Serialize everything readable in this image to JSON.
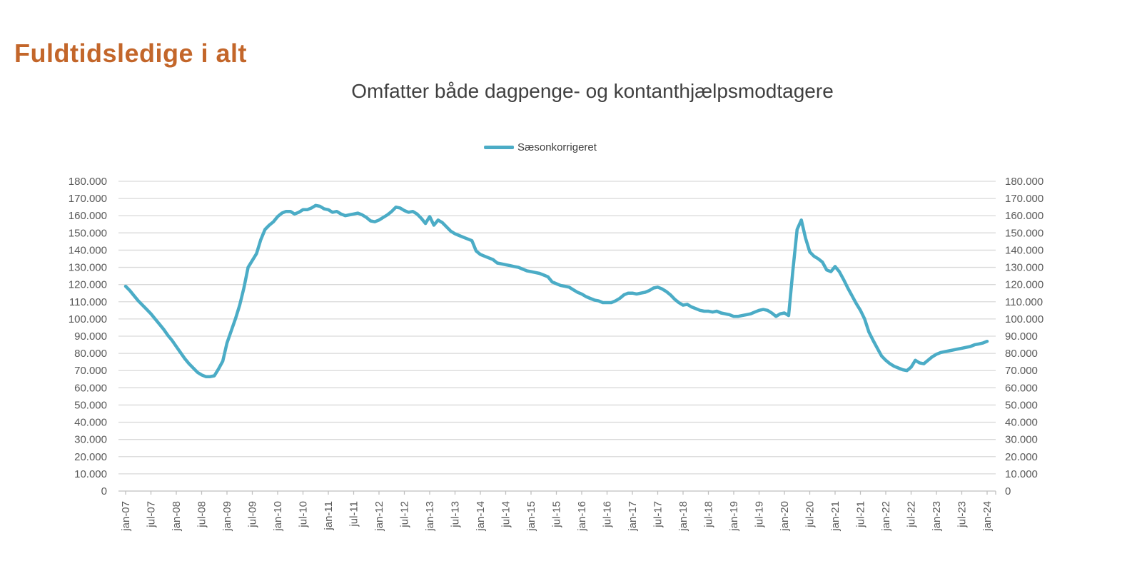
{
  "page_title": "Fuldtidsledige i alt",
  "chart": {
    "title": "Omfatter både dagpenge- og kontanthjælpsmodtagere",
    "legend_label": "Sæsonkorrigeret"
  },
  "colors": {
    "page_title": "#c3662a",
    "chart_title": "#404040",
    "legend_text": "#404040",
    "axis_text": "#595959",
    "line": "#4bacc6",
    "grid": "#d9d9d9",
    "axis_line": "#bfbfbf"
  },
  "chart_data": {
    "type": "line",
    "title": "Omfatter både dagpenge- og kontanthjælpsmodtagere",
    "legend": [
      "Sæsonkorrigeret"
    ],
    "legend_position": "top",
    "grid": "horizontal",
    "ylim": [
      0,
      180000
    ],
    "y_ticks": [
      0,
      10000,
      20000,
      30000,
      40000,
      50000,
      60000,
      70000,
      80000,
      90000,
      100000,
      110000,
      120000,
      130000,
      140000,
      150000,
      160000,
      170000,
      180000
    ],
    "y_tick_format": "da-DK thousands with dot separator",
    "x_start": "jan-07",
    "x_end": "jan-24",
    "x_interval": "monthly",
    "x_tick_labels": [
      "jan-07",
      "jul-07",
      "jan-08",
      "jul-08",
      "jan-09",
      "jul-09",
      "jan-10",
      "jul-10",
      "jan-11",
      "jul-11",
      "jan-12",
      "jul-12",
      "jan-13",
      "jul-13",
      "jan-14",
      "jul-14",
      "jan-15",
      "jul-15",
      "jan-16",
      "jul-16",
      "jan-17",
      "jul-17",
      "jan-18",
      "jul-18",
      "jan-19",
      "jul-19",
      "jan-20",
      "jul-20",
      "jan-21",
      "jul-21",
      "jan-22",
      "jul-22",
      "jan-23",
      "jul-23",
      "jan-24"
    ],
    "series": [
      {
        "name": "Sæsonkorrigeret",
        "values": [
          119000,
          116500,
          113500,
          110500,
          108000,
          105500,
          103000,
          100000,
          97000,
          94000,
          90500,
          87500,
          84000,
          80500,
          77000,
          74000,
          71500,
          69000,
          67500,
          66500,
          66500,
          67000,
          71000,
          75500,
          86000,
          93000,
          100000,
          108000,
          118000,
          130000,
          134000,
          138000,
          146000,
          152000,
          154500,
          156500,
          159500,
          161500,
          162500,
          162500,
          161000,
          162000,
          163500,
          163500,
          164500,
          166000,
          165500,
          164000,
          163500,
          162000,
          162500,
          161000,
          160000,
          160500,
          161000,
          161500,
          160500,
          159000,
          157000,
          156500,
          157500,
          159000,
          160500,
          162500,
          165000,
          164500,
          163000,
          162000,
          162500,
          161000,
          158500,
          155500,
          159500,
          154500,
          157500,
          156000,
          153500,
          151000,
          149500,
          148500,
          147500,
          146500,
          145500,
          139500,
          137500,
          136500,
          135500,
          134500,
          132500,
          132000,
          131500,
          131000,
          130500,
          130000,
          129000,
          128000,
          127500,
          127000,
          126500,
          125500,
          124500,
          121500,
          120500,
          119500,
          119000,
          118500,
          117000,
          115500,
          114500,
          113000,
          112000,
          111000,
          110500,
          109500,
          109500,
          109500,
          110500,
          112000,
          114000,
          115000,
          115000,
          114500,
          115000,
          115500,
          116500,
          118000,
          118500,
          117500,
          116000,
          114000,
          111500,
          109500,
          108000,
          108500,
          107000,
          106000,
          105000,
          104500,
          104500,
          104000,
          104500,
          103500,
          103000,
          102500,
          101500,
          101500,
          102000,
          102500,
          103000,
          104000,
          105000,
          105500,
          105000,
          103500,
          101500,
          103000,
          103500,
          102000,
          128000,
          152000,
          157500,
          147000,
          139000,
          136500,
          135000,
          133000,
          128500,
          127500,
          130500,
          127500,
          123000,
          118000,
          113500,
          109000,
          105000,
          100000,
          92500,
          87500,
          83000,
          78500,
          76000,
          74000,
          72500,
          71500,
          70500,
          70000,
          72000,
          76000,
          74500,
          74000,
          76000,
          78000,
          79500,
          80500,
          81000,
          81500,
          82000,
          82500,
          83000,
          83500,
          84000,
          85000,
          85500,
          86000,
          87000
        ]
      }
    ]
  }
}
